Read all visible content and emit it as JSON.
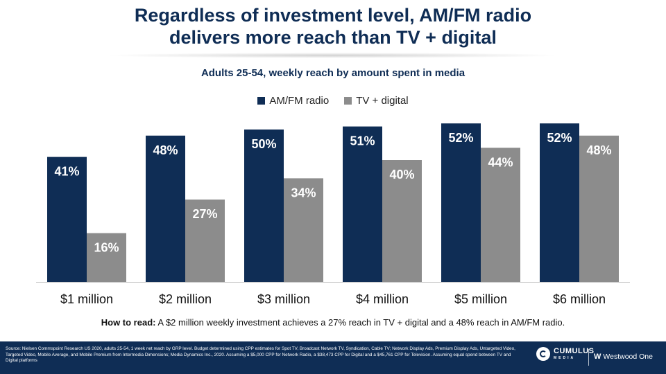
{
  "header": {
    "title_line1": "Regardless of investment level, AM/FM radio",
    "title_line2": "delivers more reach than TV + digital"
  },
  "chart_data": {
    "type": "bar",
    "title": "Adults 25-54, weekly reach by amount spent in media",
    "categories": [
      "$1 million",
      "$2 million",
      "$3 million",
      "$4 million",
      "$5 million",
      "$6 million"
    ],
    "series": [
      {
        "name": "AM/FM radio",
        "values": [
          41,
          48,
          50,
          51,
          52,
          52
        ],
        "labels": [
          "41%",
          "48%",
          "50%",
          "51%",
          "52%",
          "52%"
        ],
        "color": "#0f2d55"
      },
      {
        "name": "TV + digital",
        "values": [
          16,
          27,
          34,
          40,
          44,
          48
        ],
        "labels": [
          "16%",
          "27%",
          "34%",
          "40%",
          "44%",
          "48%"
        ],
        "color": "#8c8c8c"
      }
    ],
    "ylim": [
      0,
      55
    ],
    "grid": false,
    "legend": "top-center"
  },
  "how_to_read": {
    "label": "How to read:",
    "text": "A $2 million weekly investment achieves a 27% reach in TV + digital and a 48% reach in AM/FM radio."
  },
  "footer": {
    "source": "Source: Nielsen Commspoint Research US 2020, adults 25-54, 1 week net reach by GRP level. Budget determined using CPP estimates for Spot TV, Broadcast Network TV, Syndication, Cable TV; Network Display Ads, Premium Display Ads, Untargeted Video, Targeted Video, Mobile Average, and Mobile Premium from Intermedia Dimensions; Media Dynamics Inc., 2020. Assuming a $5,000 CPP for Network Radio, a $38,473 CPP for Digital and a $45,761 CPP for Television. Assuming equal spend between TV and Digital platforms",
    "logo1_text": "CUMULUS",
    "logo1_sub": "MEDIA",
    "logo2_mark": "W",
    "logo2_text": "Westwood One"
  }
}
